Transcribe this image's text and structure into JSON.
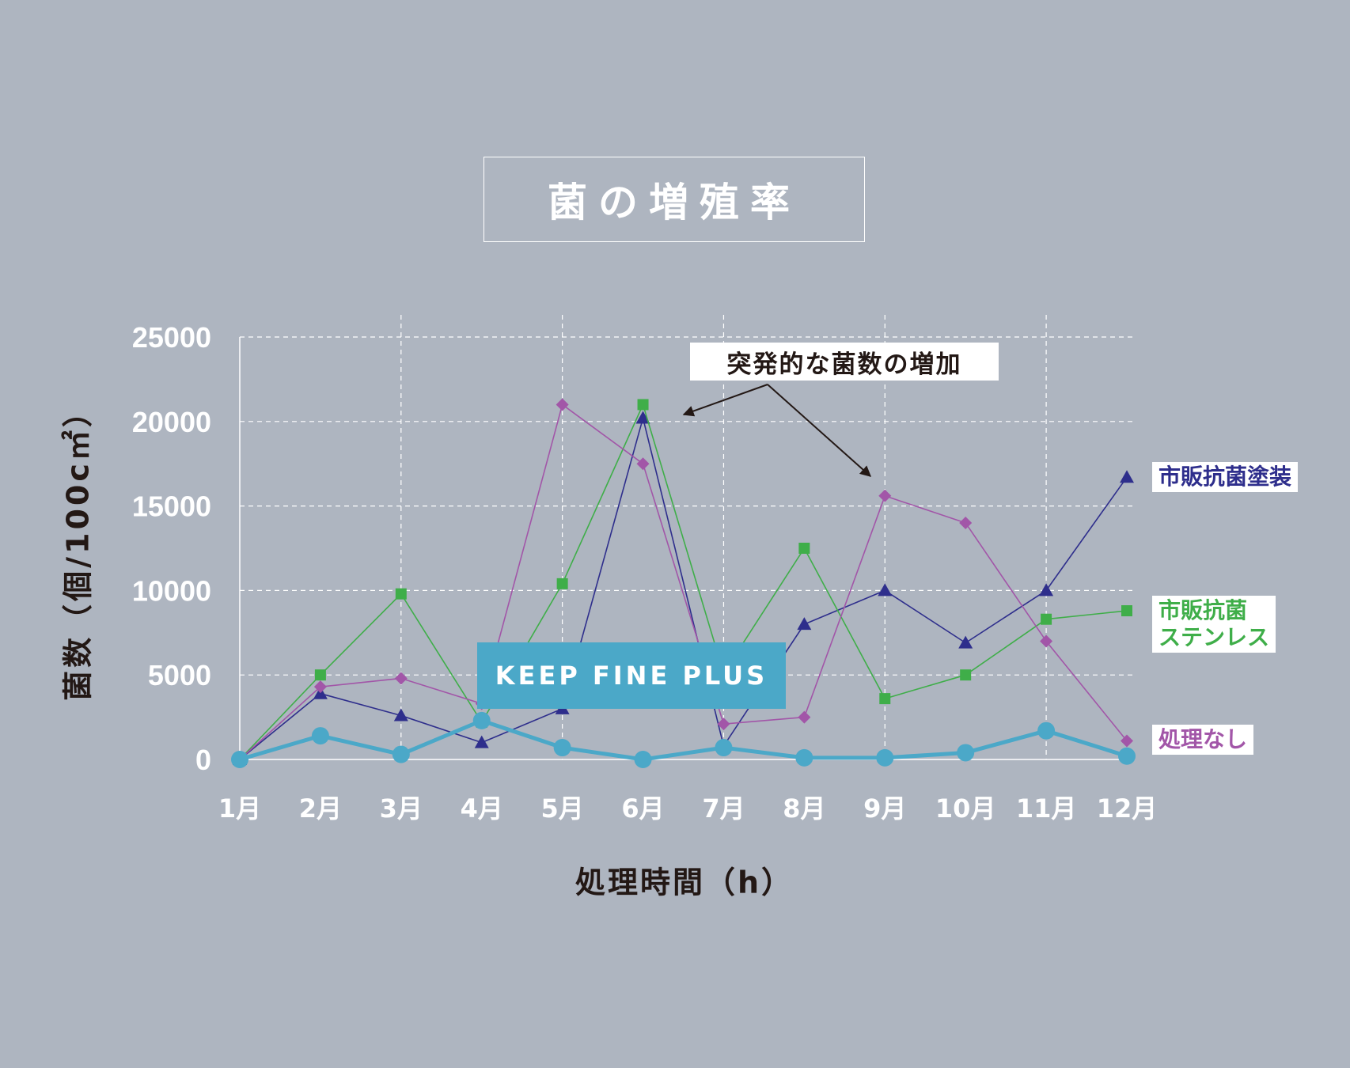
{
  "page": {
    "title": "菌の増殖率",
    "annotation": "突発的な菌数の増加",
    "colors": {
      "background": "#aeb5c0",
      "grid": "#ffffff",
      "axis_text": "#ffffff",
      "label_text": "#231815"
    }
  },
  "chart_data": {
    "type": "line",
    "title": "菌の増殖率",
    "xlabel": "処理時間（h）",
    "ylabel": "菌数（個/100c㎡）",
    "categories": [
      "1月",
      "2月",
      "3月",
      "4月",
      "5月",
      "6月",
      "7月",
      "8月",
      "9月",
      "10月",
      "11月",
      "12月"
    ],
    "y_ticks": [
      "0",
      "5000",
      "10000",
      "15000",
      "20000",
      "25000"
    ],
    "ylim": [
      0,
      25000
    ],
    "grid": true,
    "series": [
      {
        "name": "市販抗菌塗装",
        "marker": "triangle",
        "color": "#2e2e8c",
        "values": [
          0,
          3900,
          2600,
          1000,
          3000,
          20200,
          800,
          8000,
          10000,
          6900,
          10000,
          16700
        ]
      },
      {
        "name": "市販抗菌ステンレス",
        "label_lines": [
          "市販抗菌",
          "ステンレス"
        ],
        "marker": "square",
        "color": "#3fae49",
        "values": [
          0,
          5000,
          9800,
          2200,
          10400,
          21000,
          5100,
          12500,
          3600,
          5000,
          8300,
          8800
        ]
      },
      {
        "name": "処理なし",
        "marker": "diamond",
        "color": "#a256a8",
        "values": [
          0,
          4300,
          4800,
          3300,
          21000,
          17500,
          2100,
          2500,
          15600,
          14000,
          7000,
          1100
        ]
      },
      {
        "name": "KEEP FINE PLUS",
        "marker": "circle",
        "color": "#4ba8c8",
        "values": [
          0,
          1400,
          300,
          2300,
          700,
          0,
          700,
          100,
          100,
          400,
          1700,
          200
        ]
      }
    ]
  }
}
